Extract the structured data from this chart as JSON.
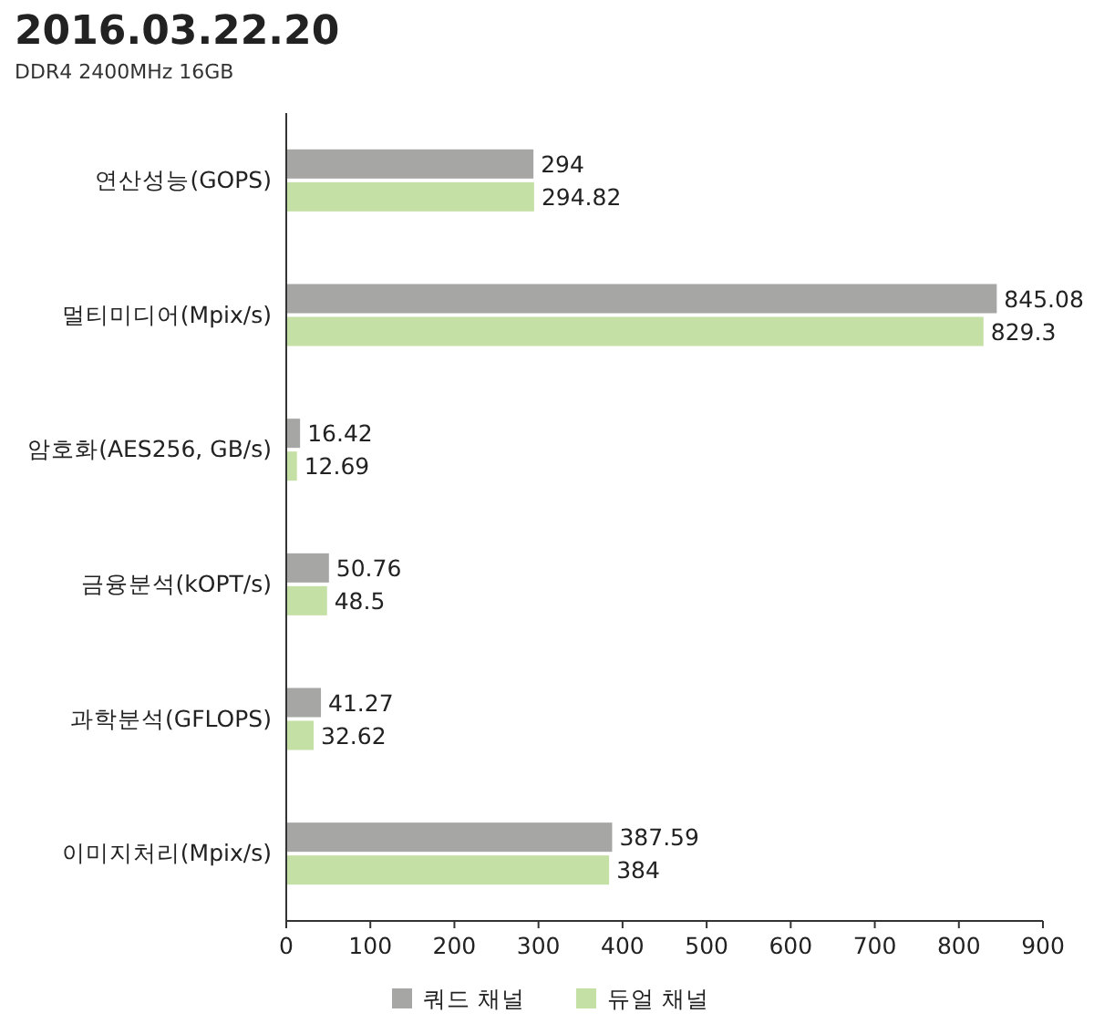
{
  "chart_data": {
    "type": "bar",
    "orientation": "horizontal",
    "title": "2016.03.22.20",
    "subtitle": "DDR4 2400MHz 16GB",
    "categories": [
      "연산성능(GOPS)",
      "멀티미디어(Mpix/s)",
      "암호화(AES256, GB/s)",
      "금융분석(kOPT/s)",
      "과학분석(GFLOPS)",
      "이미지처리(Mpix/s)"
    ],
    "series": [
      {
        "name": "쿼드 채널",
        "color": "#a6a6a4",
        "values": [
          294,
          845.08,
          16.42,
          50.76,
          41.27,
          387.59
        ]
      },
      {
        "name": "듀얼 채널",
        "color": "#c5e0a5",
        "values": [
          294.82,
          829.3,
          12.69,
          48.5,
          32.62,
          384
        ]
      }
    ],
    "xlim": [
      0,
      900
    ],
    "xticks": [
      0,
      100,
      200,
      300,
      400,
      500,
      600,
      700,
      800,
      900
    ],
    "data_labels": true,
    "legend": "bottom",
    "grid": false
  }
}
